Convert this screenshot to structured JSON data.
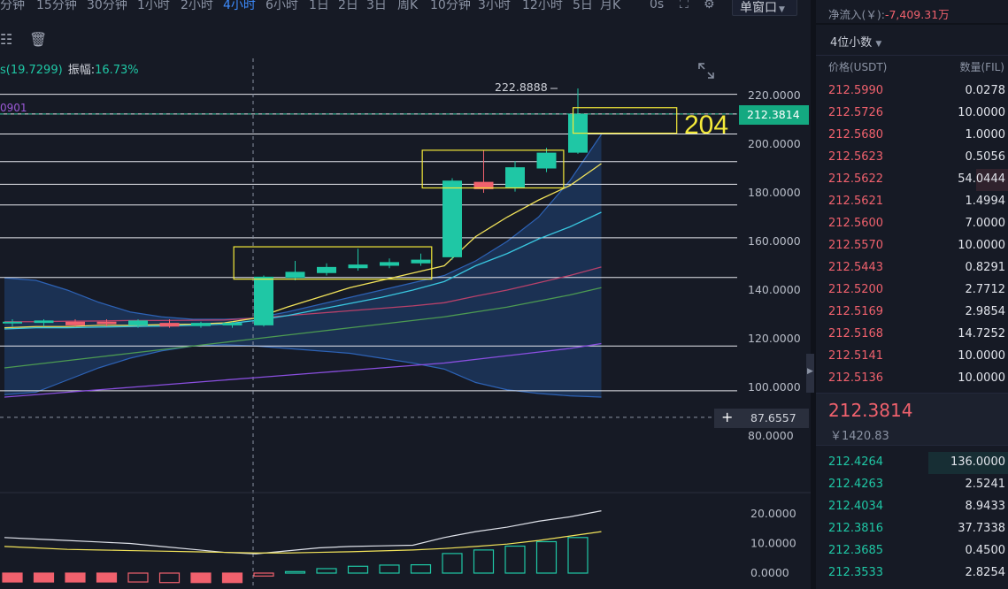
{
  "timeframes": [
    {
      "label": "分钟",
      "active": false
    },
    {
      "label": "15分钟",
      "active": false
    },
    {
      "label": "30分钟",
      "active": false
    },
    {
      "label": "1小时",
      "active": false
    },
    {
      "label": "2小时",
      "active": false
    },
    {
      "label": "4小时",
      "active": true
    },
    {
      "label": "6小时",
      "active": false
    },
    {
      "label": "1日",
      "active": false
    },
    {
      "label": "2日",
      "active": false
    },
    {
      "label": "3日",
      "active": false
    },
    {
      "label": "周K",
      "active": false
    },
    {
      "label": "10分钟",
      "active": false
    },
    {
      "label": "3小时",
      "active": false
    },
    {
      "label": "12小时",
      "active": false
    },
    {
      "label": "5日",
      "active": false
    },
    {
      "label": "月K",
      "active": false
    }
  ],
  "toolbar": {
    "seconds_label": "0s",
    "window_select": "单窗口"
  },
  "indicators": {
    "ma_value": "s(19.7299)",
    "amplitude_label": "振幅:",
    "amplitude_value": "16.73%",
    "ma30_value": "0901"
  },
  "colors": {
    "up": "#1fc7a5",
    "down": "#f0616d",
    "accent": "#3d8bfd",
    "annotation": "#f4ea3a"
  },
  "chart_data": {
    "type": "candlestick",
    "y_ticks": [
      "220.0000",
      "200.0000",
      "180.0000",
      "160.0000",
      "140.0000",
      "120.0000",
      "100.0000",
      "80.0000"
    ],
    "ylim": [
      80,
      220
    ],
    "high_marker": "222.8888",
    "current_price": "212.3814",
    "crosshair_price": "87.6557",
    "annotation": "204",
    "candles": [
      {
        "o": 127,
        "h": 128,
        "l": 125,
        "c": 127,
        "up": true
      },
      {
        "o": 126.5,
        "h": 128,
        "l": 125,
        "c": 127.5,
        "up": true
      },
      {
        "o": 127,
        "h": 128,
        "l": 125,
        "c": 125.5,
        "up": false
      },
      {
        "o": 127,
        "h": 128,
        "l": 125,
        "c": 126,
        "up": false
      },
      {
        "o": 125.5,
        "h": 128,
        "l": 124.5,
        "c": 127.5,
        "up": true
      },
      {
        "o": 126.5,
        "h": 128,
        "l": 124.5,
        "c": 125,
        "up": false
      },
      {
        "o": 125.2,
        "h": 127,
        "l": 124.5,
        "c": 126.5,
        "up": true
      },
      {
        "o": 125.5,
        "h": 127,
        "l": 124.5,
        "c": 126.5,
        "up": true
      },
      {
        "o": 125.5,
        "h": 146,
        "l": 125,
        "c": 145.5,
        "up": true
      },
      {
        "o": 145,
        "h": 152,
        "l": 144,
        "c": 147.5,
        "up": true
      },
      {
        "o": 147,
        "h": 151,
        "l": 146,
        "c": 149.5,
        "up": true
      },
      {
        "o": 149,
        "h": 157,
        "l": 148,
        "c": 150.5,
        "up": true
      },
      {
        "o": 150,
        "h": 153,
        "l": 149,
        "c": 151.5,
        "up": true
      },
      {
        "o": 151,
        "h": 155,
        "l": 150,
        "c": 152.5,
        "up": true
      },
      {
        "o": 153.5,
        "h": 186,
        "l": 152.5,
        "c": 185,
        "up": true
      },
      {
        "o": 184.5,
        "h": 197.5,
        "l": 180,
        "c": 181.5,
        "up": false
      },
      {
        "o": 182,
        "h": 193,
        "l": 180.5,
        "c": 190.5,
        "up": true
      },
      {
        "o": 190,
        "h": 198.5,
        "l": 188.5,
        "c": 196.5,
        "up": true
      },
      {
        "o": 196.5,
        "h": 222.9,
        "l": 196,
        "c": 212.4,
        "up": true
      }
    ],
    "h_lines": [
      220.5,
      212.4,
      204.2,
      192.8,
      183.5,
      175,
      161.5,
      145.2,
      117,
      98.6
    ],
    "dashed_h_lines": [
      212.4,
      87.66
    ],
    "boxes": [
      {
        "x0": 7.3,
        "x1": 13.6,
        "y0": 144.5,
        "y1": 157.8
      },
      {
        "x0": 13.3,
        "x1": 17.8,
        "y0": 182,
        "y1": 197.5
      },
      {
        "x0": 18.1,
        "x1": 21.4,
        "y0": 204.5,
        "y1": 215
      }
    ],
    "ma_yellow": [
      124.5,
      125,
      125,
      125.5,
      125.5,
      125.8,
      126,
      126.5,
      128.5,
      133,
      137,
      141,
      144,
      147,
      150,
      162,
      170,
      177,
      183,
      192
    ],
    "ma_cyan": [
      124,
      124.5,
      124.5,
      124.8,
      125,
      125.2,
      125.5,
      126,
      127.5,
      129.5,
      132,
      134.5,
      137,
      140,
      143.5,
      150,
      155,
      161,
      166,
      172
    ],
    "ma_red": [
      127,
      127,
      127.2,
      127.3,
      127.5,
      127.5,
      127.6,
      127.7,
      128.5,
      129.5,
      130.5,
      131.5,
      132.5,
      133.5,
      134.8,
      137.5,
      140,
      143,
      146,
      149.5
    ],
    "ma_green": [
      108,
      109.5,
      111,
      112.5,
      114,
      115.5,
      117,
      118.5,
      120,
      121.5,
      123,
      124.5,
      126,
      127.5,
      129,
      131,
      133,
      135.5,
      138,
      141
    ],
    "ma_purple": [
      96,
      97,
      98,
      99,
      100,
      101,
      102,
      103,
      104,
      105,
      106,
      107,
      108,
      109,
      110,
      111.5,
      113,
      114.5,
      116,
      118
    ],
    "band_upper": [
      145,
      144,
      140,
      135,
      131,
      129,
      128,
      128,
      128.5,
      131,
      134,
      137,
      140,
      143,
      146,
      152,
      160,
      170,
      185,
      204
    ],
    "band_lower": [
      97,
      98,
      103,
      108,
      112,
      115,
      117,
      117.5,
      117,
      116,
      115,
      114,
      112,
      110,
      107.5,
      102,
      99,
      97.5,
      96.5,
      96
    ],
    "sub_y_ticks": [
      "20.0000",
      "10.0000",
      "0.0000"
    ],
    "sub_ylim": [
      0,
      20
    ],
    "volume_bars": [
      {
        "v": -3,
        "up": false
      },
      {
        "v": -3,
        "up": false
      },
      {
        "v": -3,
        "up": false
      },
      {
        "v": -3,
        "up": false
      },
      {
        "v": -3,
        "up": false
      },
      {
        "v": -3.2,
        "up": false
      },
      {
        "v": -3.2,
        "up": false
      },
      {
        "v": -3.2,
        "up": false
      },
      {
        "v": -1,
        "up": false
      },
      {
        "v": 0.5,
        "up": true
      },
      {
        "v": 1.5,
        "up": true
      },
      {
        "v": 2.3,
        "up": true
      },
      {
        "v": 2.7,
        "up": true
      },
      {
        "v": 2.8,
        "up": true
      },
      {
        "v": 6.6,
        "up": true
      },
      {
        "v": 7.8,
        "up": true
      },
      {
        "v": 9.1,
        "up": true
      },
      {
        "v": 10.6,
        "up": true
      },
      {
        "v": 12
      }
    ],
    "sub_white": [
      12,
      11.5,
      11,
      10.5,
      10,
      9,
      8,
      7,
      6.5,
      7.5,
      8.5,
      9,
      9.2,
      9.4,
      12,
      14,
      15.5,
      17.5,
      19,
      21
    ],
    "sub_yellow": [
      9,
      8.5,
      8,
      7.8,
      7.6,
      7.4,
      7.2,
      7,
      6.8,
      6.8,
      7,
      7.2,
      7.5,
      7.8,
      8.3,
      9,
      9.8,
      11,
      12.5,
      14
    ]
  },
  "order_book": {
    "net_inflow_label": "净流入(￥):",
    "net_inflow_value": "-7,409.31万",
    "precision": "4位小数",
    "price_header": "价格(USDT)",
    "qty_header": "数量(FIL)",
    "asks": [
      {
        "price": "212.5990",
        "qty": "0.0278",
        "depth": 0.0
      },
      {
        "price": "212.5726",
        "qty": "10.0000",
        "depth": 0.0
      },
      {
        "price": "212.5680",
        "qty": "1.0000",
        "depth": 0.0
      },
      {
        "price": "212.5623",
        "qty": "0.5056",
        "depth": 0.0
      },
      {
        "price": "212.5622",
        "qty": "54.0444",
        "depth": 0.4
      },
      {
        "price": "212.5621",
        "qty": "1.4994",
        "depth": 0.0
      },
      {
        "price": "212.5600",
        "qty": "7.0000",
        "depth": 0.0
      },
      {
        "price": "212.5570",
        "qty": "10.0000",
        "depth": 0.0
      },
      {
        "price": "212.5443",
        "qty": "0.8291",
        "depth": 0.0
      },
      {
        "price": "212.5200",
        "qty": "2.7712",
        "depth": 0.0
      },
      {
        "price": "212.5169",
        "qty": "2.9854",
        "depth": 0.0
      },
      {
        "price": "212.5168",
        "qty": "14.7252",
        "depth": 0.0
      },
      {
        "price": "212.5141",
        "qty": "10.0000",
        "depth": 0.0
      },
      {
        "price": "212.5136",
        "qty": "10.0000",
        "depth": 0.0
      }
    ],
    "mid_price": "212.3814",
    "mid_cny": "￥1420.83",
    "bids": [
      {
        "price": "212.4264",
        "qty": "136.0000",
        "depth": 1.0
      },
      {
        "price": "212.4263",
        "qty": "2.5241",
        "depth": 0.0
      },
      {
        "price": "212.4034",
        "qty": "8.9433",
        "depth": 0.0
      },
      {
        "price": "212.3816",
        "qty": "37.7338",
        "depth": 0.0
      },
      {
        "price": "212.3685",
        "qty": "0.4500",
        "depth": 0.0
      },
      {
        "price": "212.3533",
        "qty": "2.8254",
        "depth": 0.0
      }
    ]
  }
}
